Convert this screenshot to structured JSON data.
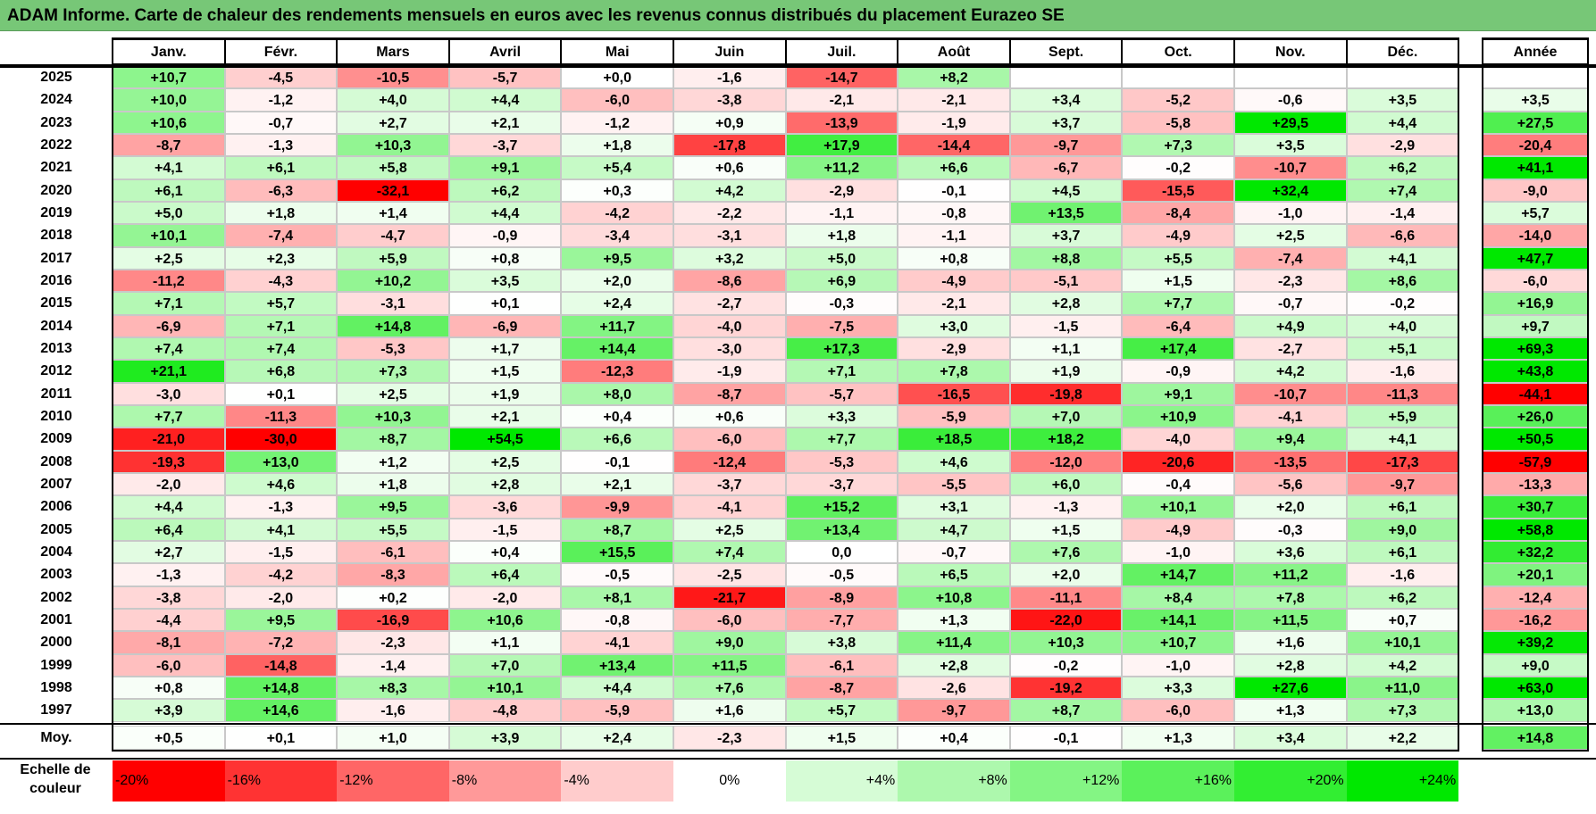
{
  "title": "ADAM Informe. Carte de chaleur des rendements mensuels en euros avec les revenus connus distribués du placement Eurazeo SE",
  "months": [
    "Janv.",
    "Févr.",
    "Mars",
    "Avril",
    "Mai",
    "Juin",
    "Juil.",
    "Août",
    "Sept.",
    "Oct.",
    "Nov.",
    "Déc."
  ],
  "annual_header": "Année",
  "avg_label": "Moy.",
  "scale_label": "Echelle de couleur",
  "color_scale": {
    "stops": [
      "-20%",
      "-16%",
      "-12%",
      "-8%",
      "-4%",
      "0%",
      "+4%",
      "+8%",
      "+12%",
      "+16%",
      "+20%",
      "+24%"
    ],
    "colors": [
      "#ff0000",
      "#ff3333",
      "#ff6666",
      "#ff9999",
      "#ffcccc",
      "#ffffff",
      "#d6fcd6",
      "#adf8ad",
      "#84f584",
      "#5bf15b",
      "#32ee32",
      "#00e800"
    ]
  },
  "chart_data": {
    "type": "heatmap",
    "title": "ADAM Informe. Carte de chaleur des rendements mensuels en euros avec les revenus connus distribués du placement Eurazeo SE",
    "columns": [
      "Janv.",
      "Févr.",
      "Mars",
      "Avril",
      "Mai",
      "Juin",
      "Juil.",
      "Août",
      "Sept.",
      "Oct.",
      "Nov.",
      "Déc.",
      "Année"
    ],
    "rows": [
      {
        "year": "2025",
        "values": [
          "+10,7",
          "-4,5",
          "-10,5",
          "-5,7",
          "+0,0",
          "-1,6",
          "-14,7",
          "+8,2",
          "",
          "",
          "",
          ""
        ],
        "annual": ""
      },
      {
        "year": "2024",
        "values": [
          "+10,0",
          "-1,2",
          "+4,0",
          "+4,4",
          "-6,0",
          "-3,8",
          "-2,1",
          "-2,1",
          "+3,4",
          "-5,2",
          "-0,6",
          "+3,5"
        ],
        "annual": "+3,5"
      },
      {
        "year": "2023",
        "values": [
          "+10,6",
          "-0,7",
          "+2,7",
          "+2,1",
          "-1,2",
          "+0,9",
          "-13,9",
          "-1,9",
          "+3,7",
          "-5,8",
          "+29,5",
          "+4,4"
        ],
        "annual": "+27,5"
      },
      {
        "year": "2022",
        "values": [
          "-8,7",
          "-1,3",
          "+10,3",
          "-3,7",
          "+1,8",
          "-17,8",
          "+17,9",
          "-14,4",
          "-9,7",
          "+7,3",
          "+3,5",
          "-2,9"
        ],
        "annual": "-20,4"
      },
      {
        "year": "2021",
        "values": [
          "+4,1",
          "+6,1",
          "+5,8",
          "+9,1",
          "+5,4",
          "+0,6",
          "+11,2",
          "+6,6",
          "-6,7",
          "-0,2",
          "-10,7",
          "+6,2"
        ],
        "annual": "+41,1"
      },
      {
        "year": "2020",
        "values": [
          "+6,1",
          "-6,3",
          "-32,1",
          "+6,2",
          "+0,3",
          "+4,2",
          "-2,9",
          "-0,1",
          "+4,5",
          "-15,5",
          "+32,4",
          "+7,4"
        ],
        "annual": "-9,0"
      },
      {
        "year": "2019",
        "values": [
          "+5,0",
          "+1,8",
          "+1,4",
          "+4,4",
          "-4,2",
          "-2,2",
          "-1,1",
          "-0,8",
          "+13,5",
          "-8,4",
          "-1,0",
          "-1,4"
        ],
        "annual": "+5,7"
      },
      {
        "year": "2018",
        "values": [
          "+10,1",
          "-7,4",
          "-4,7",
          "-0,9",
          "-3,4",
          "-3,1",
          "+1,8",
          "-1,1",
          "+3,7",
          "-4,9",
          "+2,5",
          "-6,6"
        ],
        "annual": "-14,0"
      },
      {
        "year": "2017",
        "values": [
          "+2,5",
          "+2,3",
          "+5,9",
          "+0,8",
          "+9,5",
          "+3,2",
          "+5,0",
          "+0,8",
          "+8,8",
          "+5,5",
          "-7,4",
          "+4,1"
        ],
        "annual": "+47,7"
      },
      {
        "year": "2016",
        "values": [
          "-11,2",
          "-4,3",
          "+10,2",
          "+3,5",
          "+2,0",
          "-8,6",
          "+6,9",
          "-4,9",
          "-5,1",
          "+1,5",
          "-2,3",
          "+8,6"
        ],
        "annual": "-6,0"
      },
      {
        "year": "2015",
        "values": [
          "+7,1",
          "+5,7",
          "-3,1",
          "+0,1",
          "+2,4",
          "-2,7",
          "-0,3",
          "-2,1",
          "+2,8",
          "+7,7",
          "-0,7",
          "-0,2"
        ],
        "annual": "+16,9"
      },
      {
        "year": "2014",
        "values": [
          "-6,9",
          "+7,1",
          "+14,8",
          "-6,9",
          "+11,7",
          "-4,0",
          "-7,5",
          "+3,0",
          "-1,5",
          "-6,4",
          "+4,9",
          "+4,0"
        ],
        "annual": "+9,7"
      },
      {
        "year": "2013",
        "values": [
          "+7,4",
          "+7,4",
          "-5,3",
          "+1,7",
          "+14,4",
          "-3,0",
          "+17,3",
          "-2,9",
          "+1,1",
          "+17,4",
          "-2,7",
          "+5,1"
        ],
        "annual": "+69,3"
      },
      {
        "year": "2012",
        "values": [
          "+21,1",
          "+6,8",
          "+7,3",
          "+1,5",
          "-12,3",
          "-1,9",
          "+7,1",
          "+7,8",
          "+1,9",
          "-0,9",
          "+4,2",
          "-1,6"
        ],
        "annual": "+43,8"
      },
      {
        "year": "2011",
        "values": [
          "-3,0",
          "+0,1",
          "+2,5",
          "+1,9",
          "+8,0",
          "-8,7",
          "-5,7",
          "-16,5",
          "-19,8",
          "+9,1",
          "-10,7",
          "-11,3"
        ],
        "annual": "-44,1"
      },
      {
        "year": "2010",
        "values": [
          "+7,7",
          "-11,3",
          "+10,3",
          "+2,1",
          "+0,4",
          "+0,6",
          "+3,3",
          "-5,9",
          "+7,0",
          "+10,9",
          "-4,1",
          "+5,9"
        ],
        "annual": "+26,0"
      },
      {
        "year": "2009",
        "values": [
          "-21,0",
          "-30,0",
          "+8,7",
          "+54,5",
          "+6,6",
          "-6,0",
          "+7,7",
          "+18,5",
          "+18,2",
          "-4,0",
          "+9,4",
          "+4,1"
        ],
        "annual": "+50,5"
      },
      {
        "year": "2008",
        "values": [
          "-19,3",
          "+13,0",
          "+1,2",
          "+2,5",
          "-0,1",
          "-12,4",
          "-5,3",
          "+4,6",
          "-12,0",
          "-20,6",
          "-13,5",
          "-17,3"
        ],
        "annual": "-57,9"
      },
      {
        "year": "2007",
        "values": [
          "-2,0",
          "+4,6",
          "+1,8",
          "+2,8",
          "+2,1",
          "-3,7",
          "-3,7",
          "-5,5",
          "+6,0",
          "-0,4",
          "-5,6",
          "-9,7"
        ],
        "annual": "-13,3"
      },
      {
        "year": "2006",
        "values": [
          "+4,4",
          "-1,3",
          "+9,5",
          "-3,6",
          "-9,9",
          "-4,1",
          "+15,2",
          "+3,1",
          "-1,3",
          "+10,1",
          "+2,0",
          "+6,1"
        ],
        "annual": "+30,7"
      },
      {
        "year": "2005",
        "values": [
          "+6,4",
          "+4,1",
          "+5,5",
          "-1,5",
          "+8,7",
          "+2,5",
          "+13,4",
          "+4,7",
          "+1,5",
          "-4,9",
          "-0,3",
          "+9,0"
        ],
        "annual": "+58,8"
      },
      {
        "year": "2004",
        "values": [
          "+2,7",
          "-1,5",
          "-6,1",
          "+0,4",
          "+15,5",
          "+7,4",
          "0,0",
          "-0,7",
          "+7,6",
          "-1,0",
          "+3,6",
          "+6,1"
        ],
        "annual": "+32,2"
      },
      {
        "year": "2003",
        "values": [
          "-1,3",
          "-4,2",
          "-8,3",
          "+6,4",
          "-0,5",
          "-2,5",
          "-0,5",
          "+6,5",
          "+2,0",
          "+14,7",
          "+11,2",
          "-1,6"
        ],
        "annual": "+20,1"
      },
      {
        "year": "2002",
        "values": [
          "-3,8",
          "-2,0",
          "+0,2",
          "-2,0",
          "+8,1",
          "-21,7",
          "-8,9",
          "+10,8",
          "-11,1",
          "+8,4",
          "+7,8",
          "+6,2"
        ],
        "annual": "-12,4"
      },
      {
        "year": "2001",
        "values": [
          "-4,4",
          "+9,5",
          "-16,9",
          "+10,6",
          "-0,8",
          "-6,0",
          "-7,7",
          "+1,3",
          "-22,0",
          "+14,1",
          "+11,5",
          "+0,7"
        ],
        "annual": "-16,2"
      },
      {
        "year": "2000",
        "values": [
          "-8,1",
          "-7,2",
          "-2,3",
          "+1,1",
          "-4,1",
          "+9,0",
          "+3,8",
          "+11,4",
          "+10,3",
          "+10,7",
          "+1,6",
          "+10,1"
        ],
        "annual": "+39,2"
      },
      {
        "year": "1999",
        "values": [
          "-6,0",
          "-14,8",
          "-1,4",
          "+7,0",
          "+13,4",
          "+11,5",
          "-6,1",
          "+2,8",
          "-0,2",
          "-1,0",
          "+2,8",
          "+4,2"
        ],
        "annual": "+9,0"
      },
      {
        "year": "1998",
        "values": [
          "+0,8",
          "+14,8",
          "+8,3",
          "+10,1",
          "+4,4",
          "+7,6",
          "-8,7",
          "-2,6",
          "-19,2",
          "+3,3",
          "+27,6",
          "+11,0"
        ],
        "annual": "+63,0"
      },
      {
        "year": "1997",
        "values": [
          "+3,9",
          "+14,6",
          "-1,6",
          "-4,8",
          "-5,9",
          "+1,6",
          "+5,7",
          "-9,7",
          "+8,7",
          "-6,0",
          "+1,3",
          "+7,3"
        ],
        "annual": "+13,0"
      }
    ],
    "averages": {
      "values": [
        "+0,5",
        "+0,1",
        "+1,0",
        "+3,9",
        "+2,4",
        "-2,3",
        "+1,5",
        "+0,4",
        "-0,1",
        "+1,3",
        "+3,4",
        "+2,2"
      ],
      "annual": "+14,8"
    }
  }
}
